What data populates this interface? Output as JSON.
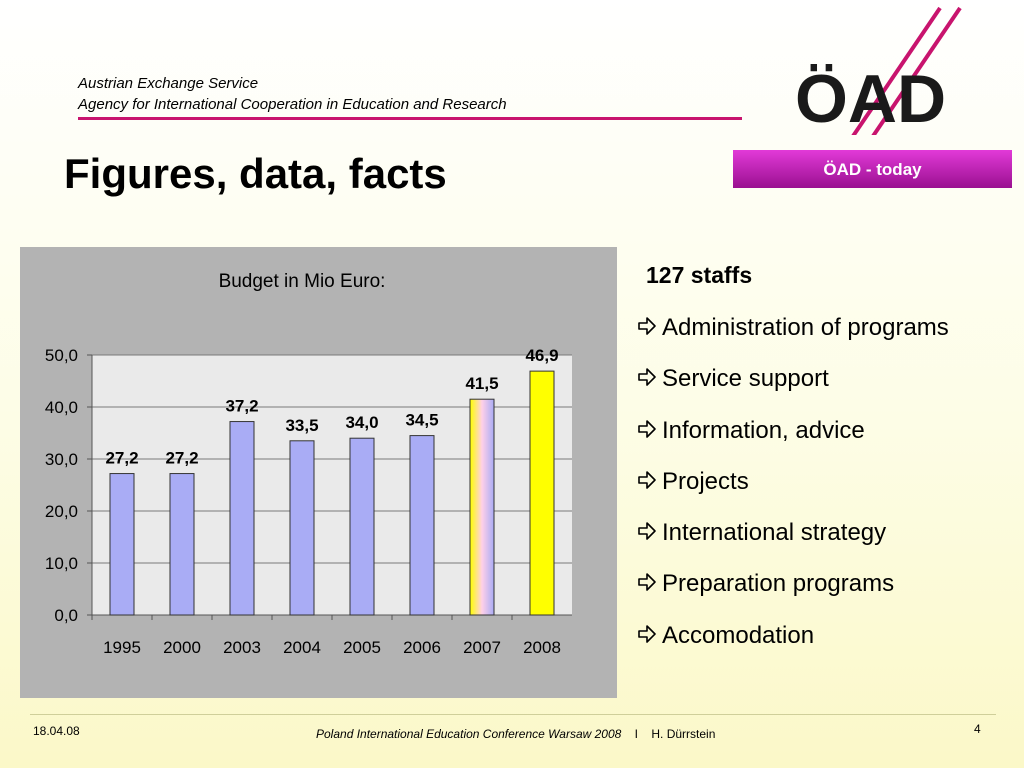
{
  "header": {
    "org_line1": "Austrian Exchange Service",
    "org_line2": "Agency for International Cooperation in Education and Research",
    "logo_text": "ÖAD",
    "logo_icon": "oead-logo"
  },
  "badge": "ÖAD - today",
  "page_title": "Figures, data, facts",
  "colors": {
    "accent": "#c8146e",
    "badge": "#b81cae",
    "bar": "#a9acf5",
    "bar_highlight": "#ffff00",
    "panel": "#b3b3b3",
    "plot_bg": "#eaeaea"
  },
  "chart_data": {
    "type": "bar",
    "title": "Budget in Mio Euro:",
    "categories": [
      "1995",
      "2000",
      "2003",
      "2004",
      "2005",
      "2006",
      "2007",
      "2008"
    ],
    "values": [
      27.2,
      27.2,
      37.2,
      33.5,
      34.0,
      34.5,
      41.5,
      46.9
    ],
    "value_labels": [
      "27,2",
      "27,2",
      "37,2",
      "33,5",
      "34,0",
      "34,5",
      "41,5",
      "46,9"
    ],
    "ylim": [
      0,
      50
    ],
    "yticks": [
      0,
      10,
      20,
      30,
      40,
      50
    ],
    "ytick_labels": [
      "0,0",
      "10,0",
      "20,0",
      "30,0",
      "40,0",
      "50,0"
    ],
    "grid": true,
    "xlabel": "",
    "ylabel": ""
  },
  "facts": {
    "heading": "127 staffs",
    "items": [
      "Administration of programs",
      "Service support",
      "Information, advice",
      "Projects",
      "International strategy",
      "Preparation programs",
      "Accomodation"
    ]
  },
  "footer": {
    "date": "18.04.08",
    "conference": "Poland International Education Conference Warsaw 2008",
    "separator": "I",
    "author": "H. Dürrstein",
    "page_number": "4"
  }
}
